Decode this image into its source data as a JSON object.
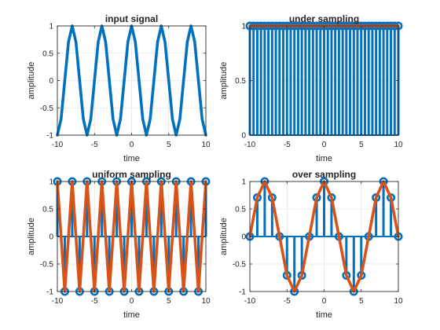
{
  "colors": {
    "blue": "#0072BD",
    "orange": "#D95319",
    "axis": "#262626",
    "grid": "#dcdcdc"
  },
  "chart_data": [
    {
      "type": "line",
      "title": "input signal",
      "xlabel": "time",
      "ylabel": "amplitude",
      "xlim": [
        -10,
        10
      ],
      "ylim": [
        -1,
        1
      ],
      "xticks": [
        -10,
        -5,
        0,
        5,
        10
      ],
      "yticks": [
        -1,
        -0.5,
        0,
        0.5,
        1
      ],
      "grid": true,
      "series": [
        {
          "kind": "line",
          "color": "#0072BD",
          "x": [
            -10,
            -9.5,
            -9,
            -8.5,
            -8,
            -7.5,
            -7,
            -6.5,
            -6,
            -5.5,
            -5,
            -4.5,
            -4,
            -3.5,
            -3,
            -2.5,
            -2,
            -1.5,
            -1,
            -0.5,
            0,
            0.5,
            1,
            1.5,
            2,
            2.5,
            3,
            3.5,
            4,
            4.5,
            5,
            5.5,
            6,
            6.5,
            7,
            7.5,
            8,
            8.5,
            9,
            9.5,
            10
          ],
          "y": [
            -1,
            -0.707,
            0,
            0.707,
            1,
            0.707,
            0,
            -0.707,
            -1,
            -0.707,
            0,
            0.707,
            1,
            0.707,
            0,
            -0.707,
            -1,
            -0.707,
            0,
            0.707,
            1,
            0.707,
            0,
            -0.707,
            -1,
            -0.707,
            0,
            0.707,
            1,
            0.707,
            0,
            -0.707,
            -1,
            -0.707,
            0,
            0.707,
            1,
            0.707,
            0,
            -0.707,
            -1
          ]
        }
      ]
    },
    {
      "type": "stem",
      "title": "under sampling",
      "xlabel": "time",
      "ylabel": "amplitude",
      "xlim": [
        -10,
        10
      ],
      "ylim": [
        0,
        1
      ],
      "xticks": [
        -10,
        -5,
        0,
        5,
        10
      ],
      "yticks": [
        0,
        0.5,
        1
      ],
      "grid": true,
      "series": [
        {
          "kind": "stem",
          "color": "#0072BD",
          "x": [
            -10,
            -9.5,
            -9,
            -8.5,
            -8,
            -7.5,
            -7,
            -6.5,
            -6,
            -5.5,
            -5,
            -4.5,
            -4,
            -3.5,
            -3,
            -2.5,
            -2,
            -1.5,
            -1,
            -0.5,
            0,
            0.5,
            1,
            1.5,
            2,
            2.5,
            3,
            3.5,
            4,
            4.5,
            5,
            5.5,
            6,
            6.5,
            7,
            7.5,
            8,
            8.5,
            9,
            9.5,
            10
          ],
          "y": [
            1,
            1,
            1,
            1,
            1,
            1,
            1,
            1,
            1,
            1,
            1,
            1,
            1,
            1,
            1,
            1,
            1,
            1,
            1,
            1,
            1,
            1,
            1,
            1,
            1,
            1,
            1,
            1,
            1,
            1,
            1,
            1,
            1,
            1,
            1,
            1,
            1,
            1,
            1,
            1,
            1
          ]
        },
        {
          "kind": "line",
          "color": "#D95319",
          "x": [
            -10,
            10
          ],
          "y": [
            1,
            1
          ]
        }
      ]
    },
    {
      "type": "stem",
      "title": "uniform sampling",
      "xlabel": "time",
      "ylabel": "amplitude",
      "xlim": [
        -10,
        10
      ],
      "ylim": [
        -1,
        1
      ],
      "xticks": [
        -10,
        -5,
        0,
        5,
        10
      ],
      "yticks": [
        -1,
        -0.5,
        0,
        0.5,
        1
      ],
      "grid": true,
      "series": [
        {
          "kind": "stem",
          "color": "#0072BD",
          "x": [
            -10,
            -9,
            -8,
            -7,
            -6,
            -5,
            -4,
            -3,
            -2,
            -1,
            0,
            1,
            2,
            3,
            4,
            5,
            6,
            7,
            8,
            9,
            10
          ],
          "y": [
            1,
            -1,
            1,
            -1,
            1,
            -1,
            1,
            -1,
            1,
            -1,
            1,
            -1,
            1,
            -1,
            1,
            -1,
            1,
            -1,
            1,
            -1,
            1
          ]
        },
        {
          "kind": "line",
          "color": "#D95319",
          "x": [
            -10,
            -9,
            -8,
            -7,
            -6,
            -5,
            -4,
            -3,
            -2,
            -1,
            0,
            1,
            2,
            3,
            4,
            5,
            6,
            7,
            8,
            9,
            10
          ],
          "y": [
            1,
            -1,
            1,
            -1,
            1,
            -1,
            1,
            -1,
            1,
            -1,
            1,
            -1,
            1,
            -1,
            1,
            -1,
            1,
            -1,
            1,
            -1,
            1
          ]
        }
      ]
    },
    {
      "type": "stem",
      "title": "over sampling",
      "xlabel": "time",
      "ylabel": "amplitude",
      "xlim": [
        -10,
        10
      ],
      "ylim": [
        -1,
        1
      ],
      "xticks": [
        -10,
        -5,
        0,
        5,
        10
      ],
      "yticks": [
        -1,
        -0.5,
        0,
        0.5,
        1
      ],
      "grid": true,
      "series": [
        {
          "kind": "stem",
          "color": "#0072BD",
          "x": [
            -10,
            -9,
            -8,
            -7,
            -6,
            -5,
            -4,
            -3,
            -2,
            -1,
            0,
            1,
            2,
            3,
            4,
            5,
            6,
            7,
            8,
            9,
            10
          ],
          "y": [
            0,
            0.707,
            1,
            0.707,
            0,
            -0.707,
            -1,
            -0.707,
            0,
            0.707,
            1,
            0.707,
            0,
            -0.707,
            -1,
            -0.707,
            0,
            0.707,
            1,
            0.707,
            0
          ]
        },
        {
          "kind": "line",
          "color": "#D95319",
          "x": [
            -10,
            -9,
            -8,
            -7,
            -6,
            -5,
            -4,
            -3,
            -2,
            -1,
            0,
            1,
            2,
            3,
            4,
            5,
            6,
            7,
            8,
            9,
            10
          ],
          "y": [
            0,
            0.707,
            1,
            0.707,
            0,
            -0.707,
            -1,
            -0.707,
            0,
            0.707,
            1,
            0.707,
            0,
            -0.707,
            -1,
            -0.707,
            0,
            0.707,
            1,
            0.707,
            0
          ]
        }
      ]
    }
  ]
}
